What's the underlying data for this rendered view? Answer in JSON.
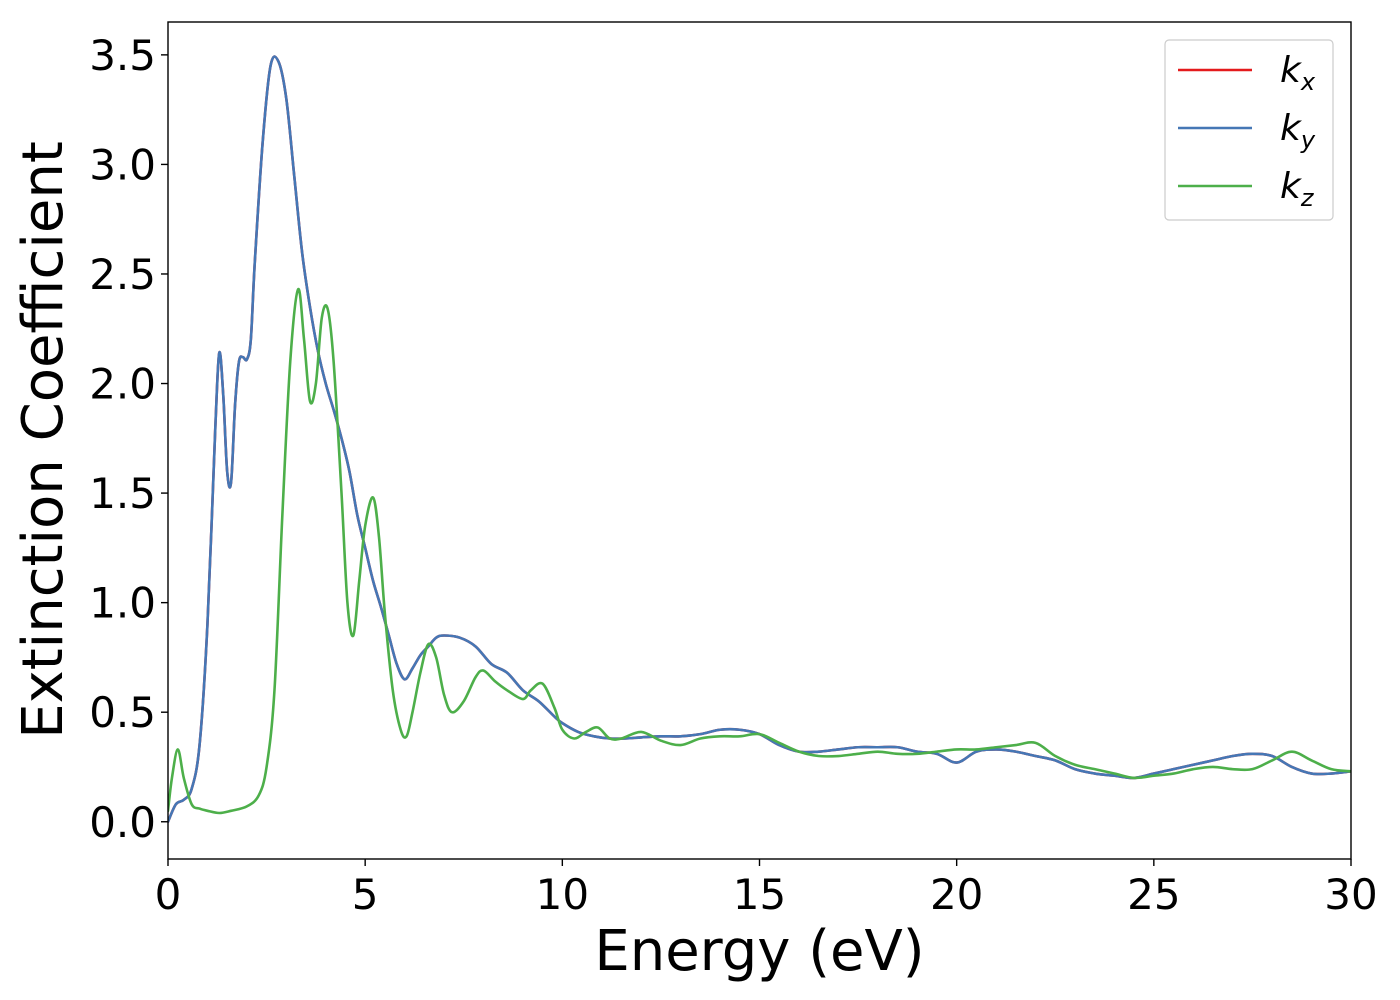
{
  "chart_data": {
    "type": "line",
    "xlabel": "Energy (eV)",
    "ylabel": "Extinction Coefficient",
    "xlim": [
      0,
      30
    ],
    "ylim": [
      -0.17,
      3.65
    ],
    "xticks": [
      "0",
      "5",
      "10",
      "15",
      "20",
      "25",
      "30"
    ],
    "xtick_values": [
      0,
      5,
      10,
      15,
      20,
      25,
      30
    ],
    "yticks": [
      "0.0",
      "0.5",
      "1.0",
      "1.5",
      "2.0",
      "2.5",
      "3.0",
      "3.5"
    ],
    "ytick_values": [
      0,
      0.5,
      1.0,
      1.5,
      2.0,
      2.5,
      3.0,
      3.5
    ],
    "grid": false,
    "legend_position": "top-right",
    "series": [
      {
        "name": "k",
        "subscript": "x",
        "color": "#e41a1c",
        "x": [
          0,
          0.2,
          0.4,
          0.6,
          0.8,
          1.0,
          1.2,
          1.3,
          1.4,
          1.5,
          1.6,
          1.7,
          1.8,
          1.9,
          2.0,
          2.1,
          2.2,
          2.4,
          2.6,
          2.8,
          3.0,
          3.2,
          3.4,
          3.6,
          3.8,
          4.0,
          4.2,
          4.4,
          4.6,
          4.8,
          5.0,
          5.2,
          5.4,
          5.6,
          5.8,
          6.0,
          6.2,
          6.4,
          6.6,
          6.8,
          7.0,
          7.4,
          7.8,
          8.2,
          8.6,
          9.0,
          9.4,
          9.8,
          10.0,
          10.4,
          10.8,
          11.2,
          11.6,
          12.0,
          12.5,
          13.0,
          13.5,
          14.0,
          14.5,
          15.0,
          15.5,
          16.0,
          16.5,
          17.0,
          17.5,
          18.0,
          18.5,
          19.0,
          19.5,
          20.0,
          20.5,
          21.0,
          21.5,
          22.0,
          22.5,
          23.0,
          23.5,
          24.0,
          24.5,
          25.0,
          25.5,
          26.0,
          26.5,
          27.0,
          27.5,
          28.0,
          28.5,
          29.0,
          29.5,
          30.0
        ],
        "y": [
          0.0,
          0.08,
          0.1,
          0.15,
          0.35,
          0.9,
          1.8,
          2.14,
          1.95,
          1.6,
          1.55,
          1.9,
          2.1,
          2.12,
          2.11,
          2.2,
          2.55,
          3.1,
          3.45,
          3.47,
          3.3,
          2.95,
          2.6,
          2.35,
          2.15,
          2.0,
          1.88,
          1.75,
          1.6,
          1.4,
          1.25,
          1.1,
          0.98,
          0.85,
          0.72,
          0.65,
          0.7,
          0.76,
          0.8,
          0.84,
          0.85,
          0.84,
          0.8,
          0.72,
          0.68,
          0.6,
          0.55,
          0.48,
          0.45,
          0.41,
          0.39,
          0.38,
          0.38,
          0.385,
          0.39,
          0.39,
          0.4,
          0.42,
          0.42,
          0.4,
          0.35,
          0.32,
          0.32,
          0.33,
          0.34,
          0.34,
          0.34,
          0.32,
          0.31,
          0.27,
          0.32,
          0.33,
          0.32,
          0.3,
          0.28,
          0.24,
          0.22,
          0.21,
          0.2,
          0.22,
          0.24,
          0.26,
          0.28,
          0.3,
          0.31,
          0.3,
          0.25,
          0.22,
          0.22,
          0.23
        ]
      },
      {
        "name": "k",
        "subscript": "y",
        "color": "#4577b5",
        "x": [
          0,
          0.2,
          0.4,
          0.6,
          0.8,
          1.0,
          1.2,
          1.3,
          1.4,
          1.5,
          1.6,
          1.7,
          1.8,
          1.9,
          2.0,
          2.1,
          2.2,
          2.4,
          2.6,
          2.8,
          3.0,
          3.2,
          3.4,
          3.6,
          3.8,
          4.0,
          4.2,
          4.4,
          4.6,
          4.8,
          5.0,
          5.2,
          5.4,
          5.6,
          5.8,
          6.0,
          6.2,
          6.4,
          6.6,
          6.8,
          7.0,
          7.4,
          7.8,
          8.2,
          8.6,
          9.0,
          9.4,
          9.8,
          10.0,
          10.4,
          10.8,
          11.2,
          11.6,
          12.0,
          12.5,
          13.0,
          13.5,
          14.0,
          14.5,
          15.0,
          15.5,
          16.0,
          16.5,
          17.0,
          17.5,
          18.0,
          18.5,
          19.0,
          19.5,
          20.0,
          20.5,
          21.0,
          21.5,
          22.0,
          22.5,
          23.0,
          23.5,
          24.0,
          24.5,
          25.0,
          25.5,
          26.0,
          26.5,
          27.0,
          27.5,
          28.0,
          28.5,
          29.0,
          29.5,
          30.0
        ],
        "y": [
          0.0,
          0.08,
          0.1,
          0.15,
          0.35,
          0.9,
          1.8,
          2.14,
          1.95,
          1.6,
          1.55,
          1.9,
          2.1,
          2.12,
          2.11,
          2.2,
          2.55,
          3.1,
          3.45,
          3.47,
          3.3,
          2.95,
          2.6,
          2.35,
          2.15,
          2.0,
          1.88,
          1.75,
          1.6,
          1.4,
          1.25,
          1.1,
          0.98,
          0.85,
          0.72,
          0.65,
          0.7,
          0.76,
          0.8,
          0.84,
          0.85,
          0.84,
          0.8,
          0.72,
          0.68,
          0.6,
          0.55,
          0.48,
          0.45,
          0.41,
          0.39,
          0.38,
          0.38,
          0.385,
          0.39,
          0.39,
          0.4,
          0.42,
          0.42,
          0.4,
          0.35,
          0.32,
          0.32,
          0.33,
          0.34,
          0.34,
          0.34,
          0.32,
          0.31,
          0.27,
          0.32,
          0.33,
          0.32,
          0.3,
          0.28,
          0.24,
          0.22,
          0.21,
          0.2,
          0.22,
          0.24,
          0.26,
          0.28,
          0.3,
          0.31,
          0.3,
          0.25,
          0.22,
          0.22,
          0.23
        ]
      },
      {
        "name": "k",
        "subscript": "z",
        "color": "#4daf4a",
        "x": [
          0,
          0.1,
          0.25,
          0.4,
          0.6,
          0.8,
          1.0,
          1.3,
          1.6,
          2.0,
          2.3,
          2.5,
          2.7,
          2.9,
          3.1,
          3.3,
          3.45,
          3.6,
          3.75,
          3.9,
          4.05,
          4.2,
          4.4,
          4.55,
          4.7,
          4.85,
          5.0,
          5.2,
          5.35,
          5.5,
          5.7,
          5.9,
          6.05,
          6.2,
          6.4,
          6.6,
          6.8,
          7.0,
          7.2,
          7.5,
          7.8,
          8.0,
          8.3,
          8.6,
          9.0,
          9.2,
          9.5,
          9.8,
          10.0,
          10.3,
          10.6,
          10.9,
          11.2,
          11.5,
          12.0,
          12.5,
          13.0,
          13.5,
          14.0,
          14.5,
          15.0,
          15.5,
          16.0,
          16.5,
          17.0,
          17.5,
          18.0,
          18.5,
          19.0,
          19.5,
          20.0,
          20.5,
          21.0,
          21.5,
          22.0,
          22.5,
          23.0,
          23.5,
          24.0,
          24.5,
          25.0,
          25.5,
          26.0,
          26.5,
          27.0,
          27.5,
          28.0,
          28.5,
          29.0,
          29.5,
          30.0
        ],
        "y": [
          0.05,
          0.2,
          0.33,
          0.2,
          0.08,
          0.06,
          0.05,
          0.04,
          0.05,
          0.07,
          0.12,
          0.25,
          0.6,
          1.4,
          2.1,
          2.43,
          2.2,
          1.92,
          2.0,
          2.3,
          2.34,
          2.1,
          1.5,
          1.0,
          0.85,
          1.1,
          1.35,
          1.48,
          1.3,
          0.95,
          0.6,
          0.42,
          0.39,
          0.5,
          0.68,
          0.81,
          0.75,
          0.58,
          0.5,
          0.55,
          0.66,
          0.69,
          0.64,
          0.6,
          0.56,
          0.6,
          0.63,
          0.52,
          0.42,
          0.38,
          0.41,
          0.43,
          0.38,
          0.38,
          0.41,
          0.37,
          0.35,
          0.38,
          0.39,
          0.39,
          0.4,
          0.36,
          0.32,
          0.3,
          0.3,
          0.31,
          0.32,
          0.31,
          0.31,
          0.32,
          0.33,
          0.33,
          0.34,
          0.35,
          0.36,
          0.3,
          0.26,
          0.24,
          0.22,
          0.2,
          0.21,
          0.22,
          0.24,
          0.25,
          0.24,
          0.24,
          0.28,
          0.32,
          0.28,
          0.24,
          0.23
        ]
      }
    ]
  }
}
